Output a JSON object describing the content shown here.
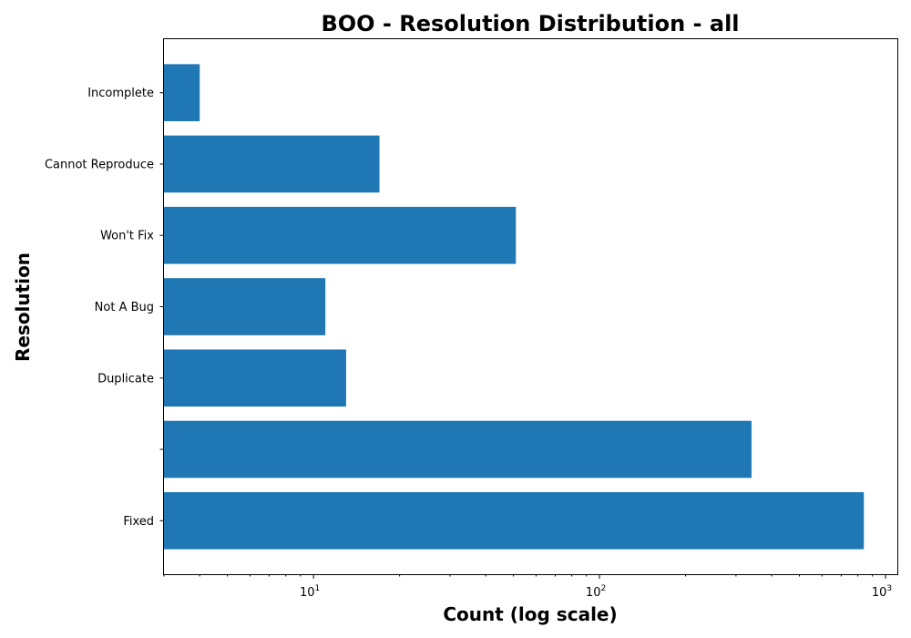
{
  "chart_data": {
    "type": "bar",
    "orientation": "horizontal",
    "title": "BOO - Resolution Distribution - all",
    "xlabel": "Count (log scale)",
    "ylabel": "Resolution",
    "x_scale": "log",
    "xlim": [
      3,
      1100
    ],
    "x_ticks": [
      {
        "value": 10,
        "base": "10",
        "exp": "1"
      },
      {
        "value": 100,
        "base": "10",
        "exp": "2"
      },
      {
        "value": 1000,
        "base": "10",
        "exp": "3"
      }
    ],
    "categories": [
      "Fixed",
      "",
      "Duplicate",
      "Not A Bug",
      "Won't Fix",
      "Cannot Reproduce",
      "Incomplete"
    ],
    "values": [
      840,
      340,
      13,
      11,
      51,
      17,
      4
    ],
    "bar_color": "#1f77b4",
    "grid": false
  }
}
